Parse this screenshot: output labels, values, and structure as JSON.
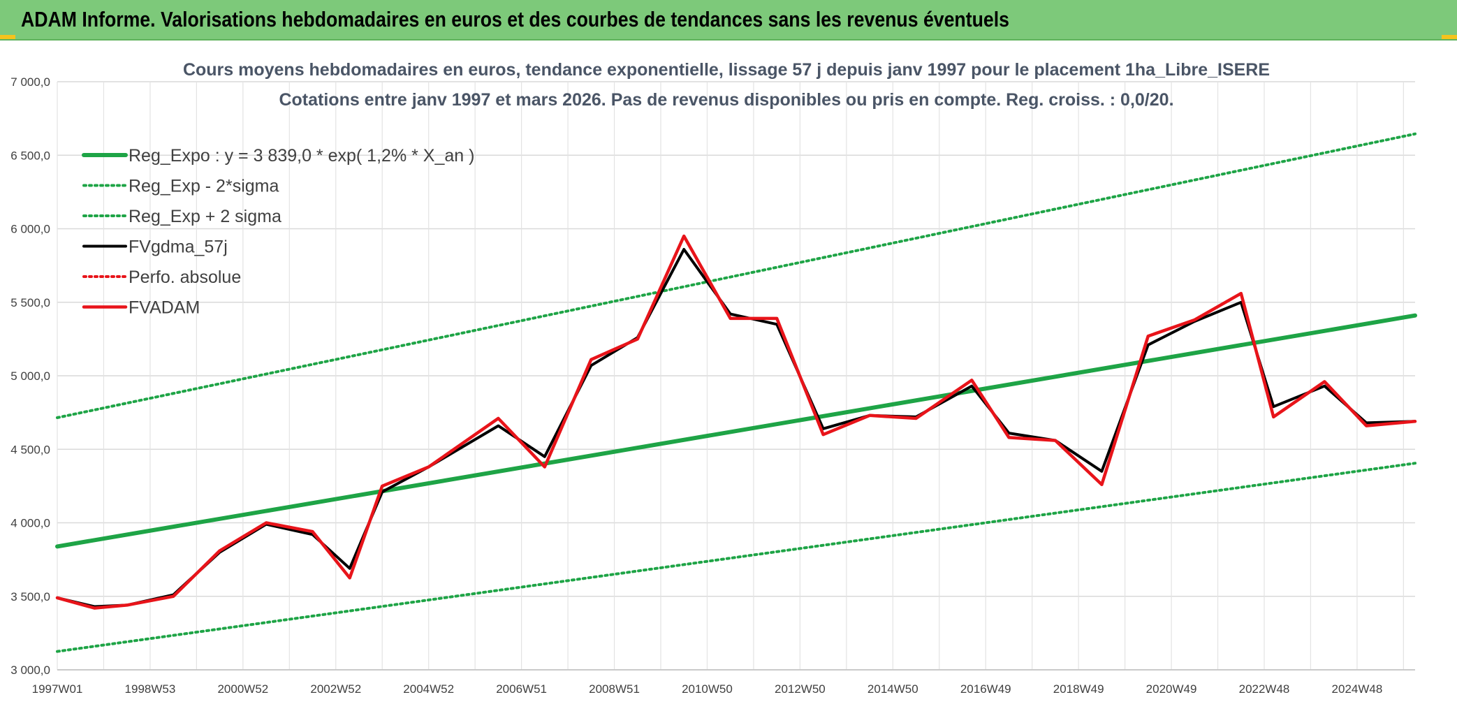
{
  "header": {
    "title": "ADAM Informe. Valorisations hebdomadaires en euros et des courbes de tendances sans les revenus éventuels",
    "bar_color": "#7dc97a",
    "corner_color": "#f4c31c"
  },
  "chart_data": {
    "type": "line",
    "title": "Cours moyens hebdomadaires en euros, tendance exponentielle, lissage 57 j depuis janv 1997 pour le placement 1ha_Libre_ISERE",
    "subtitle": "Cotations entre janv 1997 et mars 2026. Pas de revenus disponibles ou pris en compte. Reg. croiss. : 0,0/20.",
    "xlabel": "",
    "ylabel": "",
    "ylim": [
      3000,
      7000
    ],
    "yticks": [
      3000,
      3500,
      4000,
      4500,
      5000,
      5500,
      6000,
      6500,
      7000
    ],
    "ytick_labels": [
      "3 000,0",
      "3 500,0",
      "4 000,0",
      "4 500,0",
      "5 000,0",
      "5 500,0",
      "6 000,0",
      "6 500,0",
      "7 000,0"
    ],
    "xlim": [
      1997.0,
      2026.25
    ],
    "xtick_labels": [
      "1997W01",
      "1998W53",
      "2000W52",
      "2002W52",
      "2004W52",
      "2006W51",
      "2008W51",
      "2010W50",
      "2012W50",
      "2014W50",
      "2016W49",
      "2018W49",
      "2020W49",
      "2022W48",
      "2024W48"
    ],
    "xtick_positions": [
      1997.0,
      1999.0,
      2001.0,
      2003.0,
      2005.0,
      2007.0,
      2009.0,
      2011.0,
      2013.0,
      2015.0,
      2017.0,
      2019.0,
      2021.0,
      2023.0,
      2025.0
    ],
    "grid": true,
    "legend_position": "top-left",
    "series": [
      {
        "name": "Reg_Expo : y = 3 839,0 * exp( 1,2% *  X_an )",
        "color": "#1ea446",
        "style": "solid",
        "x": [
          1997.0,
          2026.25
        ],
        "values": [
          3839,
          5410
        ]
      },
      {
        "name": "Reg_Exp - 2*sigma",
        "color": "#1ea446",
        "style": "dotted",
        "x": [
          1997.0,
          2026.25
        ],
        "values": [
          3125,
          4405
        ]
      },
      {
        "name": "Reg_Exp + 2 sigma",
        "color": "#1ea446",
        "style": "dotted",
        "x": [
          1997.0,
          2026.25
        ],
        "values": [
          4715,
          6645
        ]
      },
      {
        "name": "FVgdma_57j",
        "color": "#000000",
        "style": "solid",
        "x": [
          1997.0,
          1997.8,
          1998.5,
          1999.5,
          2000.5,
          2001.5,
          2002.5,
          2003.3,
          2004.0,
          2005.0,
          2006.5,
          2007.5,
          2008.5,
          2009.5,
          2010.5,
          2011.5,
          2012.5,
          2013.5,
          2014.5,
          2015.5,
          2016.7,
          2017.5,
          2018.5,
          2019.5,
          2020.5,
          2021.5,
          2022.5,
          2023.2,
          2024.3,
          2025.2,
          2026.25
        ],
        "values": [
          3490,
          3430,
          3440,
          3510,
          3800,
          3990,
          3920,
          3690,
          4210,
          4380,
          4660,
          4450,
          5070,
          5260,
          5860,
          5420,
          5350,
          4640,
          4730,
          4720,
          4930,
          4610,
          4560,
          4350,
          5210,
          5370,
          5500,
          4790,
          4930,
          4680,
          4690
        ]
      },
      {
        "name": "Perfo. absolue",
        "color": "#e8141a",
        "style": "dotted",
        "x": [],
        "values": []
      },
      {
        "name": "FVADAM",
        "color": "#e8141a",
        "style": "solid",
        "x": [
          1997.0,
          1997.8,
          1998.5,
          1999.5,
          2000.5,
          2001.5,
          2002.5,
          2003.3,
          2004.0,
          2005.0,
          2006.5,
          2007.5,
          2008.5,
          2009.5,
          2010.5,
          2011.5,
          2012.5,
          2013.5,
          2014.5,
          2015.5,
          2016.7,
          2017.5,
          2018.5,
          2019.5,
          2020.5,
          2021.5,
          2022.5,
          2023.2,
          2024.3,
          2025.2,
          2026.25
        ],
        "values": [
          3490,
          3420,
          3440,
          3500,
          3810,
          4000,
          3940,
          3625,
          4250,
          4380,
          4710,
          4380,
          5110,
          5250,
          5950,
          5390,
          5390,
          4600,
          4730,
          4710,
          4970,
          4580,
          4560,
          4260,
          5270,
          5380,
          5560,
          4720,
          4960,
          4660,
          4690
        ]
      }
    ]
  }
}
